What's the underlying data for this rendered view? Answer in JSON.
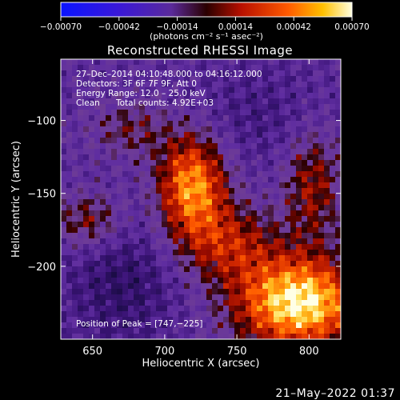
{
  "chart_data": {
    "type": "heatmap",
    "title": "Reconstructed RHESSI Image",
    "xlabel": "Heliocentric X (arcsec)",
    "ylabel": "Heliocentric Y (arcsec)",
    "xlim": [
      628,
      822
    ],
    "ylim": [
      -250,
      -58
    ],
    "x_ticks": [
      650,
      700,
      750,
      800
    ],
    "y_ticks": [
      -200,
      -150,
      -100
    ],
    "x_tick_labels": [
      "650",
      "700",
      "750",
      "800"
    ],
    "y_tick_labels": [
      "−200",
      "−150",
      "−100"
    ],
    "colorbar": {
      "range": [
        -0.0007,
        0.0007
      ],
      "ticks": [
        -0.0007,
        -0.00042,
        -0.00014,
        0.00014,
        0.00042,
        0.0007
      ],
      "tick_labels": [
        "−0.00070",
        "−0.00042",
        "−0.00014",
        "0.00014",
        "0.00042",
        "0.00070"
      ],
      "unit_label": "(photons cm⁻² s⁻¹ asec⁻²)"
    },
    "annotations": {
      "time_range": "27–Dec–2014 04:10:48.000 to 04:16:12.000",
      "detectors": "Detectors: 3F 6F 7F 9F, Att 0",
      "energy": "Energy Range: 12.0 – 25.0 keV",
      "clean": "Clean",
      "counts": "Total counts: 4.92E+03",
      "peak": "Position of Peak = [747,−225]"
    },
    "peak": [
      747,
      -225
    ]
  },
  "footer_date": "21–May–2022 01:37",
  "colors": {
    "background": "#000000",
    "text": "#ffffff"
  }
}
